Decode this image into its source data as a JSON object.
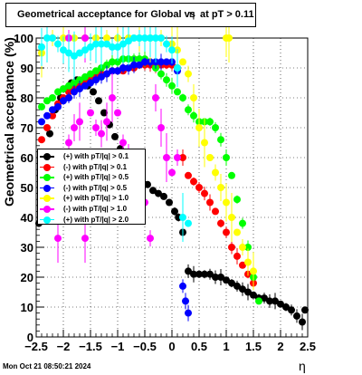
{
  "title_parts": {
    "prefix": "Geometrical acceptance for Global vs",
    "eta": "η",
    "suffix": "at pT > 0.11"
  },
  "date_stamp": "Mon Oct 21 08:50:21 2024",
  "chart_data": {
    "type": "scatter",
    "title": "Geometrical acceptance for Global vs η at pT > 0.11",
    "xlabel": "η",
    "ylabel": "Geometrical acceptance (%)",
    "xlim": [
      -2.5,
      2.5
    ],
    "ylim": [
      0,
      100
    ],
    "x_ticks": [
      "−2.5",
      "−2",
      "−1.5",
      "−1",
      "−0.5",
      "0",
      "0.5",
      "1",
      "1.5",
      "2",
      "2.5"
    ],
    "y_ticks": [
      "0",
      "10",
      "20",
      "30",
      "40",
      "50",
      "60",
      "70",
      "80",
      "90",
      "100"
    ],
    "grid": true,
    "legend_position": "middle-left",
    "series": [
      {
        "name": "(+) with pT/|q| > 0.1",
        "color": "#000000",
        "points": [
          [
            -2.45,
            38
          ],
          [
            -2.35,
            55
          ],
          [
            -2.25,
            68
          ],
          [
            -2.15,
            76
          ],
          [
            -2.05,
            80
          ],
          [
            -1.95,
            83
          ],
          [
            -1.85,
            85
          ],
          [
            -1.75,
            86
          ],
          [
            -1.65,
            85
          ],
          [
            -1.55,
            84
          ],
          [
            -1.45,
            82
          ],
          [
            -1.35,
            79
          ],
          [
            -1.25,
            75
          ],
          [
            -1.15,
            71
          ],
          [
            -1.05,
            67
          ],
          [
            -0.95,
            63
          ],
          [
            -0.85,
            60
          ],
          [
            -0.75,
            58
          ],
          [
            -0.65,
            57
          ],
          [
            -0.55,
            54
          ],
          [
            -0.45,
            51
          ],
          [
            -0.35,
            49
          ],
          [
            -0.25,
            48
          ],
          [
            -0.15,
            47
          ],
          [
            -0.05,
            45
          ],
          [
            0.05,
            42
          ],
          [
            0.12,
            40
          ],
          [
            0.2,
            35
          ],
          [
            0.3,
            22
          ],
          [
            0.4,
            21
          ],
          [
            0.5,
            21
          ],
          [
            0.6,
            21
          ],
          [
            0.7,
            21
          ],
          [
            0.8,
            20
          ],
          [
            0.9,
            20
          ],
          [
            1.0,
            19
          ],
          [
            1.1,
            18
          ],
          [
            1.2,
            17
          ],
          [
            1.3,
            16
          ],
          [
            1.4,
            15
          ],
          [
            1.5,
            14
          ],
          [
            1.6,
            13
          ],
          [
            1.7,
            13
          ],
          [
            1.8,
            12
          ],
          [
            1.9,
            12
          ],
          [
            2.0,
            11
          ],
          [
            2.1,
            10
          ],
          [
            2.2,
            9
          ],
          [
            2.3,
            7
          ],
          [
            2.4,
            5
          ],
          [
            2.45,
            9
          ]
        ]
      },
      {
        "name": "(-) with pT/|q| > 0.1",
        "color": "#ff0000",
        "points": [
          [
            -2.4,
            66
          ],
          [
            -2.3,
            70
          ],
          [
            -2.2,
            74
          ],
          [
            -2.1,
            78
          ],
          [
            -2.0,
            80
          ],
          [
            -1.9,
            82
          ],
          [
            -1.8,
            83
          ],
          [
            -1.7,
            84
          ],
          [
            -1.6,
            85
          ],
          [
            -1.5,
            86
          ],
          [
            -1.4,
            87
          ],
          [
            -1.3,
            88
          ],
          [
            -1.2,
            88
          ],
          [
            -1.1,
            89
          ],
          [
            -1.0,
            89
          ],
          [
            -0.9,
            89
          ],
          [
            -0.8,
            90
          ],
          [
            -0.7,
            90
          ],
          [
            -0.6,
            91
          ],
          [
            -0.5,
            91
          ],
          [
            -0.4,
            91
          ],
          [
            -0.3,
            91
          ],
          [
            -0.2,
            91
          ],
          [
            -0.1,
            91
          ],
          [
            0.0,
            91
          ],
          [
            0.1,
            90
          ],
          [
            0.2,
            60
          ],
          [
            0.3,
            54
          ],
          [
            0.4,
            52
          ],
          [
            0.5,
            50
          ],
          [
            0.6,
            48
          ],
          [
            0.7,
            45
          ],
          [
            0.8,
            42
          ],
          [
            0.9,
            38
          ],
          [
            1.0,
            35
          ],
          [
            1.1,
            30
          ],
          [
            1.2,
            27
          ],
          [
            1.3,
            24
          ],
          [
            1.4,
            21
          ],
          [
            1.5,
            18
          ]
        ]
      },
      {
        "name": "(+) with pT/|q| > 0.5",
        "color": "#00ff00",
        "points": [
          [
            -2.4,
            77
          ],
          [
            -2.3,
            79
          ],
          [
            -2.2,
            80
          ],
          [
            -2.1,
            82
          ],
          [
            -2.0,
            83
          ],
          [
            -1.9,
            84
          ],
          [
            -1.8,
            85
          ],
          [
            -1.7,
            86
          ],
          [
            -1.6,
            87
          ],
          [
            -1.5,
            88
          ],
          [
            -1.4,
            89
          ],
          [
            -1.3,
            90
          ],
          [
            -1.2,
            91
          ],
          [
            -1.1,
            92
          ],
          [
            -1.0,
            92
          ],
          [
            -0.9,
            93
          ],
          [
            -0.8,
            93
          ],
          [
            -0.7,
            93
          ],
          [
            -0.6,
            93
          ],
          [
            -0.5,
            93
          ],
          [
            -0.4,
            92
          ],
          [
            -0.3,
            90
          ],
          [
            -0.2,
            88
          ],
          [
            -0.1,
            86
          ],
          [
            0.0,
            84
          ],
          [
            0.1,
            82
          ],
          [
            0.2,
            80
          ],
          [
            0.3,
            76
          ],
          [
            0.4,
            74
          ],
          [
            0.5,
            72
          ],
          [
            0.6,
            72
          ],
          [
            0.7,
            72
          ],
          [
            0.8,
            70
          ],
          [
            0.9,
            66
          ],
          [
            1.0,
            60
          ],
          [
            1.1,
            54
          ],
          [
            1.2,
            46
          ],
          [
            1.3,
            38
          ],
          [
            1.4,
            30
          ],
          [
            1.5,
            20
          ],
          [
            1.6,
            12
          ]
        ]
      },
      {
        "name": "(-) with pT/|q| > 0.5",
        "color": "#0000ff",
        "points": [
          [
            -2.4,
            72
          ],
          [
            -2.3,
            74
          ],
          [
            -2.2,
            76
          ],
          [
            -2.1,
            77
          ],
          [
            -2.0,
            79
          ],
          [
            -1.9,
            80
          ],
          [
            -1.8,
            82
          ],
          [
            -1.7,
            83
          ],
          [
            -1.6,
            84
          ],
          [
            -1.5,
            85
          ],
          [
            -1.4,
            86
          ],
          [
            -1.3,
            87
          ],
          [
            -1.2,
            88
          ],
          [
            -1.1,
            89
          ],
          [
            -1.0,
            89
          ],
          [
            -0.9,
            90
          ],
          [
            -0.8,
            90
          ],
          [
            -0.7,
            91
          ],
          [
            -0.6,
            91
          ],
          [
            -0.5,
            92
          ],
          [
            -0.4,
            92
          ],
          [
            -0.3,
            92
          ],
          [
            -0.2,
            92
          ],
          [
            -0.1,
            92
          ],
          [
            0.0,
            92
          ],
          [
            0.1,
            89
          ],
          [
            0.2,
            17
          ],
          [
            0.25,
            12
          ],
          [
            0.3,
            8
          ]
        ]
      },
      {
        "name": "(+) with pT/|q| > 1.0",
        "color": "#ffff00",
        "points": [
          [
            -2.4,
            95
          ],
          [
            -2.2,
            100
          ],
          [
            -2.0,
            100
          ],
          [
            -1.8,
            100
          ],
          [
            -1.6,
            100
          ],
          [
            -1.4,
            100
          ],
          [
            -1.2,
            100
          ],
          [
            -1.0,
            100
          ],
          [
            -0.8,
            100
          ],
          [
            -0.6,
            100
          ],
          [
            -0.4,
            100
          ],
          [
            -0.2,
            100
          ],
          [
            0.0,
            98
          ],
          [
            0.1,
            96
          ],
          [
            0.2,
            92
          ],
          [
            0.3,
            88
          ],
          [
            0.4,
            80
          ],
          [
            0.5,
            70
          ],
          [
            0.6,
            65
          ],
          [
            0.7,
            60
          ],
          [
            0.8,
            55
          ],
          [
            0.9,
            50
          ],
          [
            1.0,
            45
          ],
          [
            1.1,
            40
          ],
          [
            1.2,
            35
          ],
          [
            1.3,
            30
          ],
          [
            1.4,
            25
          ],
          [
            1.5,
            22
          ],
          [
            1.0,
            100
          ],
          [
            1.05,
            100
          ]
        ]
      },
      {
        "name": "(-) with pT/|q| > 1.0",
        "color": "#ff00ff",
        "points": [
          [
            -2.4,
            45
          ],
          [
            -2.3,
            50
          ],
          [
            -2.2,
            55
          ],
          [
            -2.1,
            33
          ],
          [
            -2.0,
            60
          ],
          [
            -1.9,
            65
          ],
          [
            -1.8,
            70
          ],
          [
            -1.7,
            72
          ],
          [
            -1.6,
            33
          ],
          [
            -1.5,
            75
          ],
          [
            -1.4,
            70
          ],
          [
            -1.3,
            68
          ],
          [
            -1.2,
            72
          ],
          [
            -1.1,
            80
          ],
          [
            -1.0,
            75
          ],
          [
            -0.9,
            65
          ],
          [
            -0.8,
            60
          ],
          [
            -0.7,
            55
          ],
          [
            -0.6,
            50
          ],
          [
            -0.5,
            45
          ],
          [
            -0.4,
            33
          ],
          [
            -0.3,
            80
          ],
          [
            -0.2,
            70
          ],
          [
            -0.1,
            60
          ],
          [
            0.0,
            55
          ],
          [
            0.1,
            60
          ],
          [
            -1.6,
            100
          ],
          [
            -1.9,
            100
          ]
        ]
      },
      {
        "name": "(+) with pT/|q| > 2.0",
        "color": "#00ffff",
        "points": [
          [
            -2.4,
            97
          ],
          [
            -2.3,
            100
          ],
          [
            -2.2,
            100
          ],
          [
            -2.1,
            98
          ],
          [
            -2.0,
            96
          ],
          [
            -1.9,
            95
          ],
          [
            -1.8,
            94
          ],
          [
            -1.7,
            95
          ],
          [
            -1.6,
            96
          ],
          [
            -1.5,
            97
          ],
          [
            -1.4,
            98
          ],
          [
            -1.3,
            98
          ],
          [
            -1.2,
            98
          ],
          [
            -1.1,
            97
          ],
          [
            -1.0,
            97
          ],
          [
            -0.9,
            98
          ],
          [
            -0.8,
            99
          ],
          [
            -0.7,
            100
          ],
          [
            -0.6,
            100
          ],
          [
            -0.5,
            100
          ],
          [
            -0.4,
            100
          ],
          [
            -0.3,
            100
          ],
          [
            -0.2,
            100
          ],
          [
            -0.1,
            98
          ],
          [
            0.0,
            96
          ],
          [
            0.1,
            90
          ],
          [
            0.2,
            40
          ],
          [
            0.3,
            38
          ]
        ]
      }
    ]
  }
}
